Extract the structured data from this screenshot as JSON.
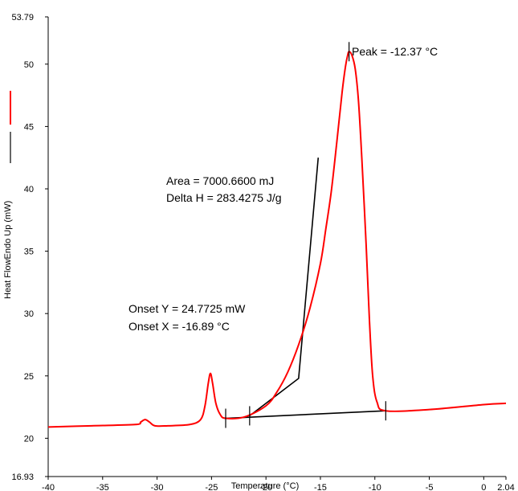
{
  "chart_data": {
    "type": "line",
    "xlabel": "Temperature (°C)",
    "ylabel": "Heat FlowEndo Up (mW)",
    "xlim": [
      -40,
      2.04
    ],
    "ylim": [
      16.93,
      53.79
    ],
    "x_ticks": [
      -40,
      -35,
      -30,
      -25,
      -20,
      -15,
      -10,
      -5,
      0,
      2.04
    ],
    "x_tick_labels": [
      "-40",
      "-35",
      "-30",
      "-25",
      "-20",
      "-15",
      "-10",
      "-5",
      "0",
      "2.04"
    ],
    "y_ticks": [
      16.93,
      20,
      25,
      30,
      35,
      40,
      45,
      50,
      53.79
    ],
    "y_tick_labels": [
      "16.93",
      "20",
      "25",
      "30",
      "35",
      "40",
      "45",
      "50",
      "53.79"
    ],
    "grid": false,
    "series": [
      {
        "color": "#ff0000",
        "x": [
          -40,
          -36,
          -32,
          -31.5,
          -31.1,
          -30.7,
          -30.2,
          -29,
          -27,
          -26,
          -25.6,
          -25.3,
          -25.1,
          -24.9,
          -24.6,
          -24.2,
          -23.7,
          -22,
          -20,
          -19,
          -18,
          -17,
          -16,
          -15,
          -14.5,
          -14,
          -13.5,
          -13,
          -12.7,
          -12.5,
          -12.37,
          -12.1,
          -11.8,
          -11.5,
          -11.2,
          -10.8,
          -10.5,
          -10.2,
          -9.8,
          -9,
          -5,
          0,
          2.04
        ],
        "y": [
          20.9,
          21.0,
          21.1,
          21.3,
          21.5,
          21.3,
          21.0,
          21.0,
          21.1,
          21.5,
          22.6,
          24.4,
          25.2,
          24.4,
          22.8,
          21.9,
          21.6,
          21.7,
          22.6,
          23.7,
          25.3,
          27.5,
          30.3,
          34.0,
          36.8,
          39.8,
          43.7,
          47.8,
          49.8,
          50.7,
          51.0,
          50.7,
          49.6,
          47.0,
          42.5,
          35.5,
          29.5,
          25.0,
          22.9,
          22.2,
          22.3,
          22.7,
          22.8
        ]
      }
    ],
    "baseline": {
      "x": [
        -23.7,
        -9
      ],
      "y": [
        21.6,
        22.2
      ]
    },
    "onset_tangent": {
      "x": [
        -21.5,
        -17.0,
        -15.2
      ],
      "y": [
        21.8,
        24.8,
        42.5
      ]
    },
    "markers": [
      {
        "x": -23.7,
        "y": 21.6
      },
      {
        "x": -21.5,
        "y": 21.8
      },
      {
        "x": -9,
        "y": 22.2
      },
      {
        "x": -12.37,
        "y": 51.0
      }
    ],
    "annotations": {
      "peak": "Peak = -12.37 °C",
      "area": "Area = 7000.6600 mJ",
      "delta_h": "Delta H = 283.4275 J/g",
      "onset_y": "Onset Y = 24.7725 mW",
      "onset_x": "Onset X = -16.89 °C"
    }
  }
}
